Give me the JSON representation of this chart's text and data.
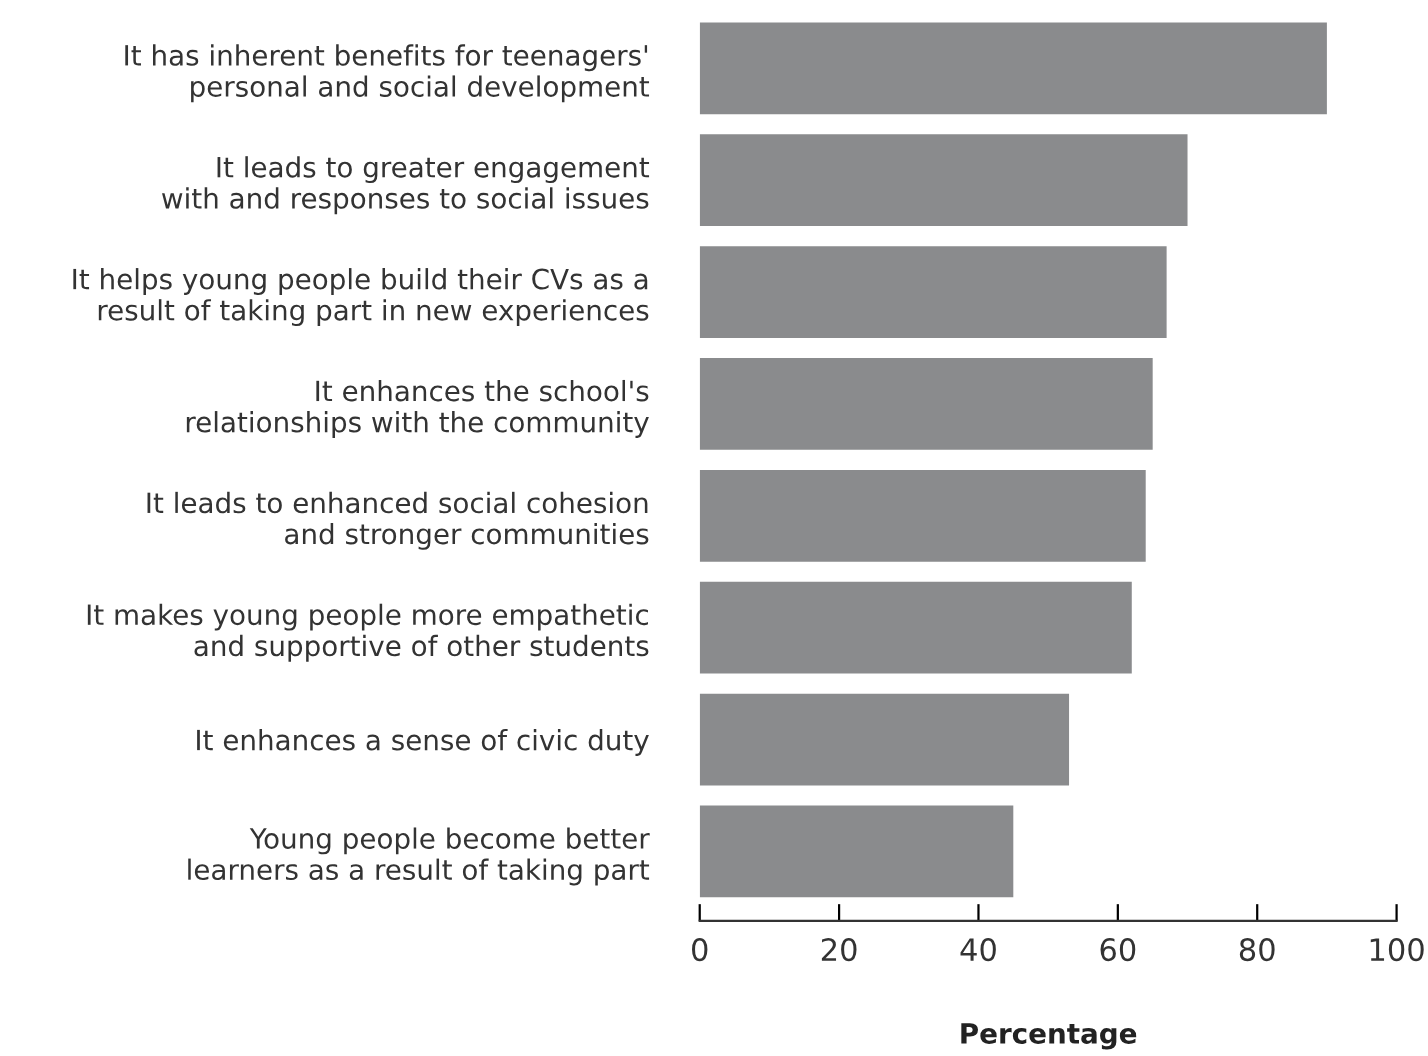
{
  "chart_data": {
    "type": "bar",
    "orientation": "horizontal",
    "xlabel": "Percentage",
    "categories": [
      "It has inherent benefits for teenagers'\npersonal and social development",
      "It leads to greater engagement\nwith and responses to social issues",
      "It helps young people build their CVs as a\nresult of taking part in new experiences",
      "It enhances the school's\nrelationships with the community",
      "It leads to enhanced social cohesion\nand stronger communities",
      "It makes young people more empathetic\nand supportive of other students",
      "It enhances a sense of civic duty",
      "Young people become better\nlearners as a result of taking part"
    ],
    "values": [
      90,
      70,
      67,
      65,
      64,
      62,
      53,
      45
    ],
    "color": "#8a8b8d",
    "xlim": [
      0,
      100
    ],
    "xticks": [
      0,
      20,
      40,
      60,
      80,
      100
    ],
    "grid": false
  }
}
